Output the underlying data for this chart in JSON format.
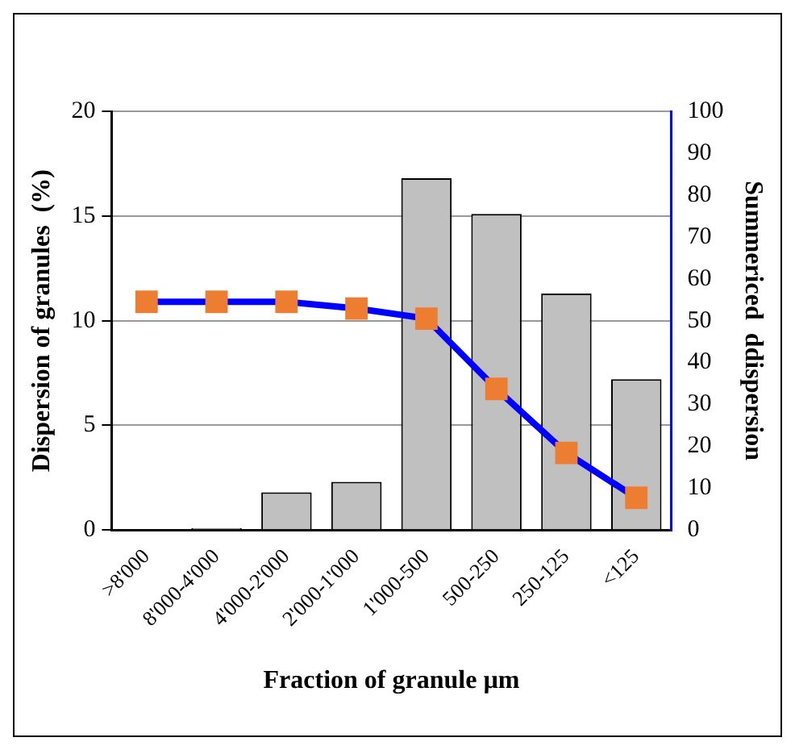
{
  "chart_data": {
    "type": "bar",
    "xlabel": "Fraction of granule µm",
    "ylabel": "Dispersion of granules  (%)",
    "y2label": "Summericed  ddispersion",
    "categories": [
      ">8'000",
      "8'000-4'000",
      "4'000-2'000",
      "2'000-1'000",
      "1'000-500",
      "500-250",
      "250-125",
      "<125"
    ],
    "series": [
      {
        "color": "#c0c0c0",
        "values": [
          0,
          0.1,
          1.8,
          2.3,
          16.8,
          15.1,
          11.3,
          7.2
        ]
      },
      {
        "type": "line",
        "axis": "y2",
        "color": "#0000ff",
        "marker": "square",
        "values": [
          54.5,
          54.5,
          54.5,
          52.9,
          50.5,
          33.7,
          18.4,
          7.7
        ]
      }
    ],
    "ylim": [
      0,
      20
    ],
    "yticks": [
      0,
      5,
      10,
      15,
      20
    ],
    "y2lim": [
      0,
      100
    ],
    "y2ticks": [
      0,
      10,
      20,
      30,
      40,
      50,
      60,
      70,
      80,
      90,
      100
    ],
    "grid": "y",
    "legend": false
  }
}
